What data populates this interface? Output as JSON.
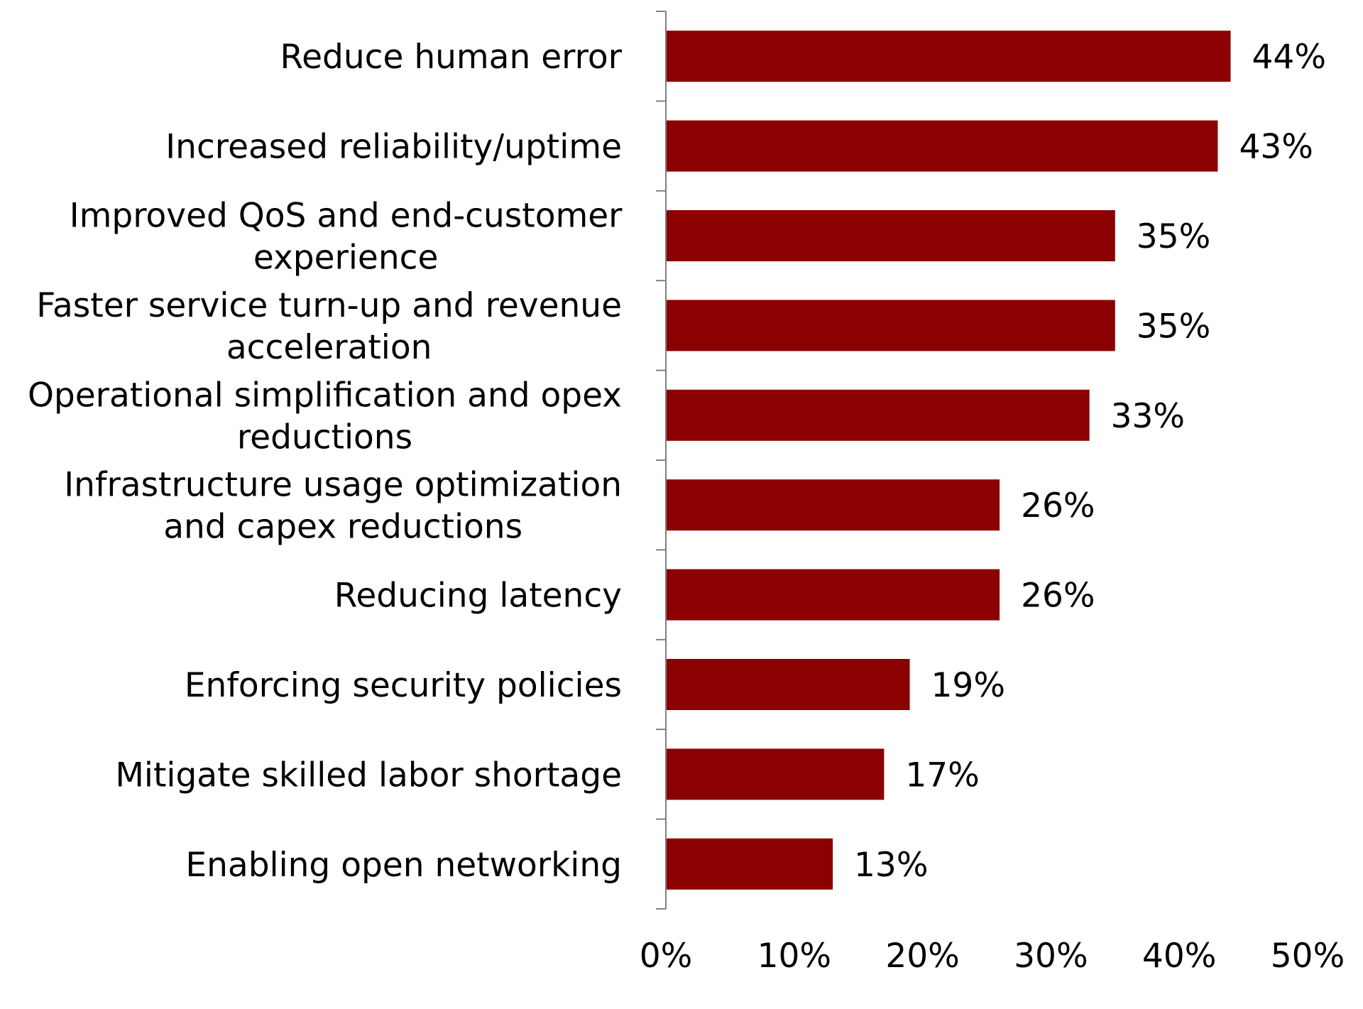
{
  "chart_data": {
    "type": "bar",
    "orientation": "horizontal",
    "categories": [
      "Reduce human error",
      "Increased reliability/uptime",
      "Improved QoS and end-customer experience",
      "Faster service turn-up and revenue acceleration",
      "Operational simplification and opex reductions",
      "Infrastructure usage optimization and capex reductions",
      "Reducing latency",
      "Enforcing security policies",
      "Mitigate skilled labor shortage",
      "Enabling open networking"
    ],
    "category_lines": [
      [
        "Reduce human error"
      ],
      [
        "Increased reliability/uptime"
      ],
      [
        "Improved QoS and end-customer",
        "experience"
      ],
      [
        "Faster service turn-up and revenue",
        "acceleration"
      ],
      [
        "Operational simplification and opex",
        "reductions"
      ],
      [
        "Infrastructure usage optimization",
        "and capex reductions"
      ],
      [
        "Reducing latency"
      ],
      [
        "Enforcing security policies"
      ],
      [
        "Mitigate skilled labor shortage"
      ],
      [
        "Enabling open networking"
      ]
    ],
    "values": [
      44,
      43,
      35,
      35,
      33,
      26,
      26,
      19,
      17,
      13
    ],
    "value_labels": [
      "44%",
      "43%",
      "35%",
      "35%",
      "33%",
      "26%",
      "26%",
      "19%",
      "17%",
      "13%"
    ],
    "xlim": [
      0,
      50
    ],
    "xticks": [
      0,
      10,
      20,
      30,
      40,
      50
    ],
    "xtick_labels": [
      "0%",
      "10%",
      "20%",
      "30%",
      "40%",
      "50%"
    ],
    "title": "",
    "xlabel": "",
    "ylabel": "",
    "grid": false,
    "legend": "none",
    "bar_color": "#8B0000",
    "axis_color": "#808080"
  }
}
